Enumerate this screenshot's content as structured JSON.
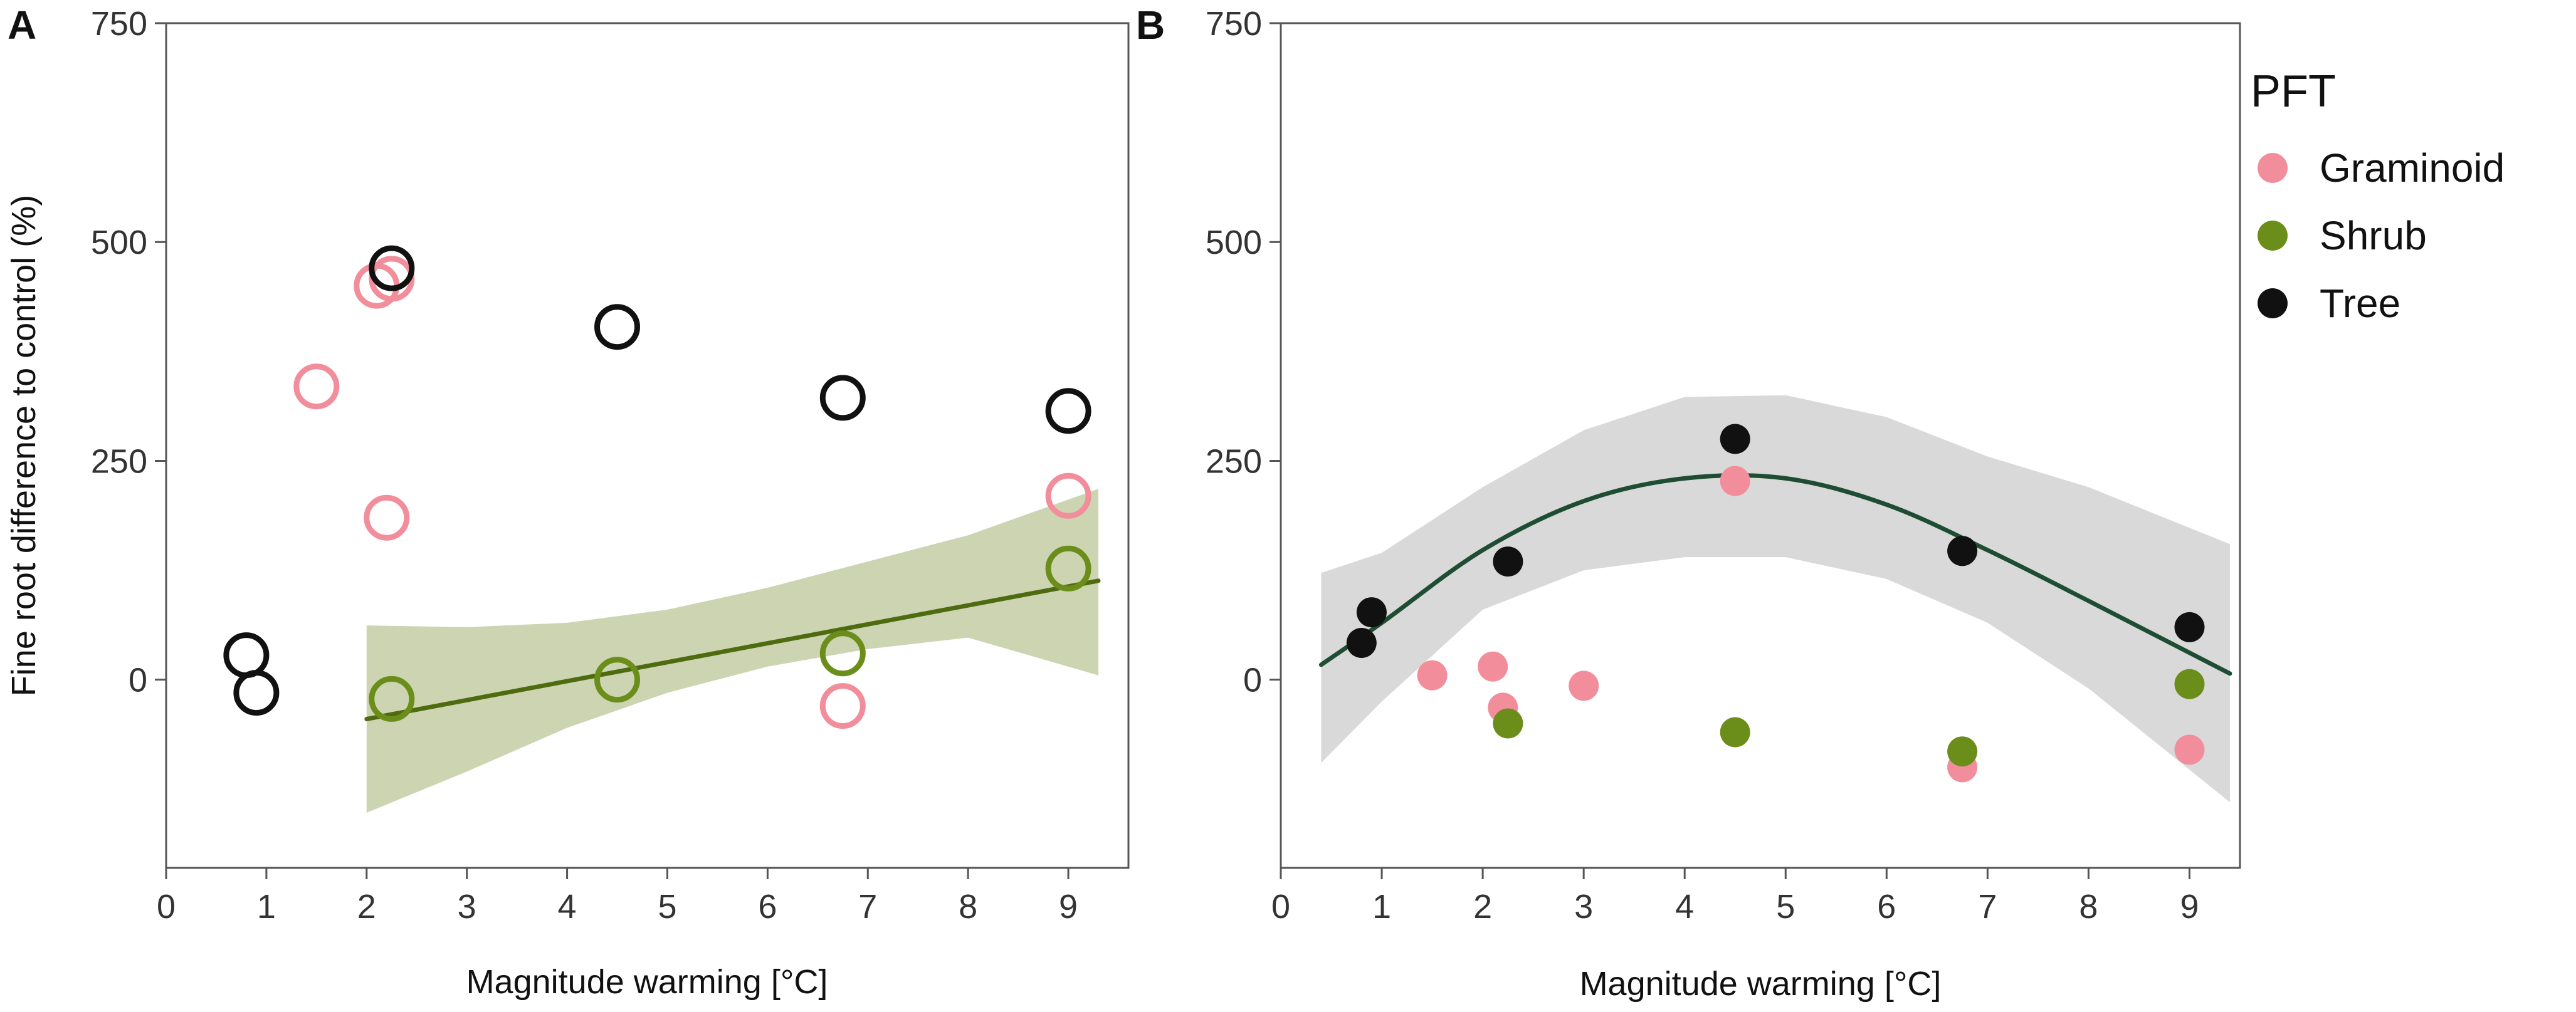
{
  "colors": {
    "graminoid": "#f28e9b",
    "shrub": "#6b8e1a",
    "tree": "#111111",
    "fit_a": "#4f6b0f",
    "ribbon_a": "#c6cfa8",
    "fit_b": "#1f4d33",
    "ribbon_b": "#d9d9d9"
  },
  "legend": {
    "title": "PFT",
    "items": [
      {
        "key": "graminoid",
        "label": "Graminoid"
      },
      {
        "key": "shrub",
        "label": "Shrub"
      },
      {
        "key": "tree",
        "label": "Tree"
      }
    ]
  },
  "chart_data": [
    {
      "panel": "A",
      "type": "scatter",
      "marker": "open-circle",
      "xlabel": "Magnitude warming [°C]",
      "ylabel": "Fine root difference to control (%)",
      "xlim": [
        0,
        9.6
      ],
      "ylim": [
        -215,
        750
      ],
      "xticks": [
        0,
        1,
        2,
        3,
        4,
        5,
        6,
        7,
        8,
        9
      ],
      "yticks": [
        0,
        250,
        500,
        750
      ],
      "series": [
        {
          "name": "Graminoid",
          "points": [
            [
              1.5,
              335
            ],
            [
              2.1,
              450
            ],
            [
              2.25,
              458
            ],
            [
              2.2,
              185
            ],
            [
              6.75,
              -30
            ],
            [
              9.0,
              210
            ]
          ]
        },
        {
          "name": "Shrub",
          "points": [
            [
              2.25,
              -22
            ],
            [
              4.5,
              0
            ],
            [
              6.75,
              30
            ],
            [
              9.0,
              127
            ]
          ]
        },
        {
          "name": "Tree",
          "points": [
            [
              0.8,
              28
            ],
            [
              0.9,
              -15
            ],
            [
              2.25,
              470
            ],
            [
              4.5,
              403
            ],
            [
              6.75,
              322
            ],
            [
              9.0,
              307
            ]
          ]
        }
      ],
      "fit": {
        "series": "Shrub",
        "line": [
          [
            2.0,
            -45
          ],
          [
            9.3,
            113
          ]
        ],
        "ribbon_upper": [
          [
            2.0,
            62
          ],
          [
            3.0,
            60
          ],
          [
            4.0,
            65
          ],
          [
            5.0,
            80
          ],
          [
            6.0,
            105
          ],
          [
            7.0,
            135
          ],
          [
            8.0,
            165
          ],
          [
            9.3,
            218
          ]
        ],
        "ribbon_lower": [
          [
            2.0,
            -152
          ],
          [
            3.0,
            -105
          ],
          [
            4.0,
            -55
          ],
          [
            5.0,
            -15
          ],
          [
            6.0,
            15
          ],
          [
            7.0,
            35
          ],
          [
            8.0,
            48
          ],
          [
            9.3,
            5
          ]
        ]
      }
    },
    {
      "panel": "B",
      "type": "scatter",
      "marker": "filled-circle",
      "xlabel": "Magnitude warming [°C]",
      "ylabel": "",
      "xlim": [
        0,
        9.5
      ],
      "ylim": [
        -215,
        750
      ],
      "xticks": [
        0,
        1,
        2,
        3,
        4,
        5,
        6,
        7,
        8,
        9
      ],
      "yticks": [
        0,
        250,
        500,
        750
      ],
      "series": [
        {
          "name": "Graminoid",
          "points": [
            [
              1.5,
              5
            ],
            [
              2.1,
              15
            ],
            [
              2.2,
              -32
            ],
            [
              3.0,
              -7
            ],
            [
              4.5,
              227
            ],
            [
              6.75,
              -100
            ],
            [
              9.0,
              -80
            ]
          ]
        },
        {
          "name": "Shrub",
          "points": [
            [
              2.25,
              -50
            ],
            [
              4.5,
              -60
            ],
            [
              6.75,
              -82
            ],
            [
              9.0,
              -5
            ]
          ]
        },
        {
          "name": "Tree",
          "points": [
            [
              0.8,
              42
            ],
            [
              0.9,
              77
            ],
            [
              2.25,
              135
            ],
            [
              4.5,
              275
            ],
            [
              6.75,
              147
            ],
            [
              9.0,
              60
            ]
          ]
        }
      ],
      "fit": {
        "series": "Tree",
        "curve": [
          [
            0.4,
            17
          ],
          [
            1.0,
            65
          ],
          [
            2.0,
            148
          ],
          [
            3.0,
            204
          ],
          [
            4.0,
            230
          ],
          [
            5.0,
            230
          ],
          [
            6.0,
            200
          ],
          [
            7.0,
            148
          ],
          [
            8.0,
            90
          ],
          [
            9.4,
            7
          ]
        ],
        "ribbon_upper": [
          [
            0.4,
            122
          ],
          [
            1.0,
            145
          ],
          [
            2.0,
            220
          ],
          [
            3.0,
            285
          ],
          [
            4.0,
            323
          ],
          [
            5.0,
            325
          ],
          [
            6.0,
            300
          ],
          [
            7.0,
            255
          ],
          [
            8.0,
            220
          ],
          [
            9.4,
            155
          ]
        ],
        "ribbon_lower": [
          [
            0.4,
            -95
          ],
          [
            1.0,
            -25
          ],
          [
            2.0,
            80
          ],
          [
            3.0,
            125
          ],
          [
            4.0,
            140
          ],
          [
            5.0,
            140
          ],
          [
            6.0,
            115
          ],
          [
            7.0,
            65
          ],
          [
            8.0,
            -10
          ],
          [
            9.4,
            -140
          ]
        ]
      }
    }
  ]
}
